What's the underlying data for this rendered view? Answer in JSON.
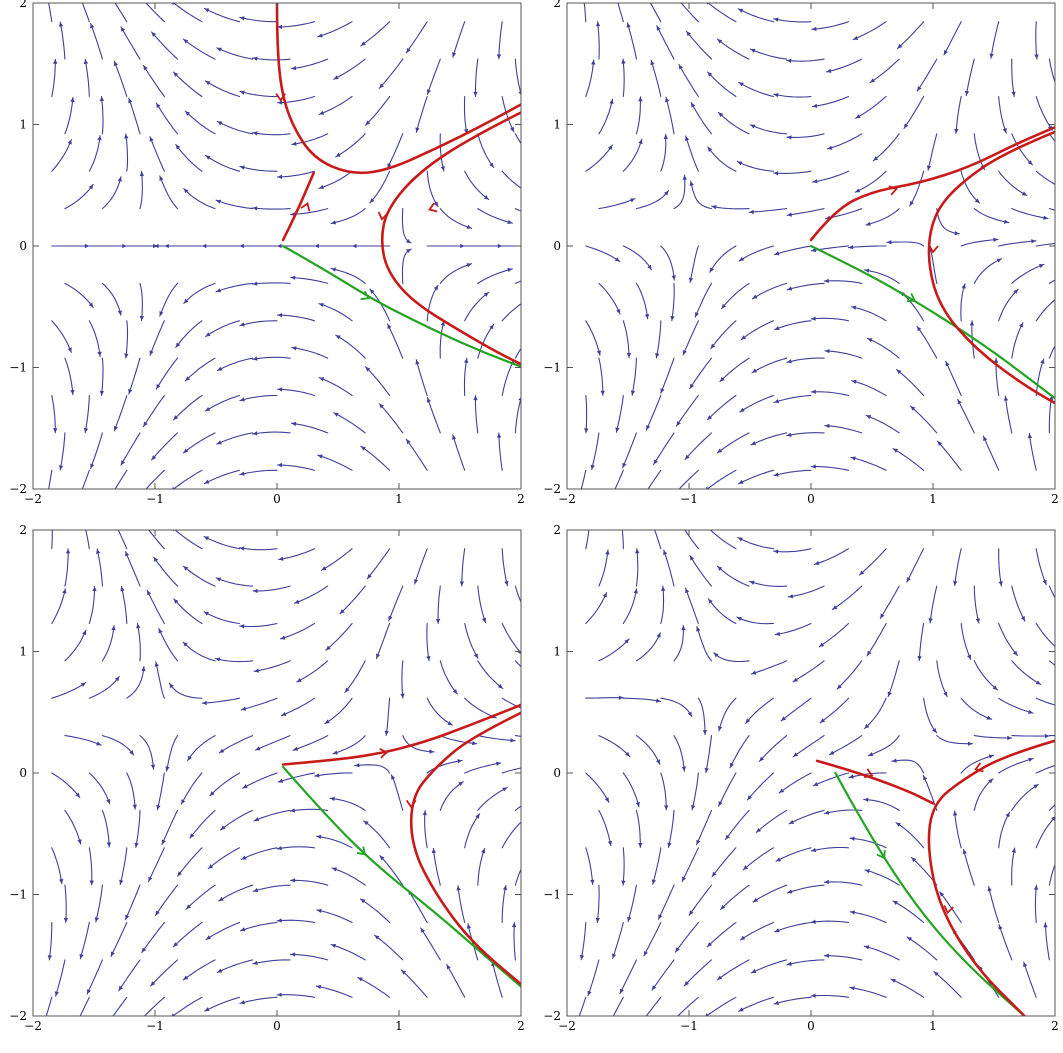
{
  "chart_data": [
    {
      "type": "streamplot",
      "panel": "top-left",
      "xlim": [
        -2,
        2
      ],
      "ylim": [
        -2,
        2
      ],
      "x_ticks": [
        -2,
        -1,
        0,
        1,
        2
      ],
      "y_ticks": [
        -2,
        -1,
        0,
        1,
        2
      ],
      "x_tick_labels": [
        "−2",
        "−1",
        "0",
        "1",
        "2"
      ],
      "y_tick_labels": [
        "−2",
        "−1",
        "0",
        "1",
        "2"
      ],
      "field_param": 0.0,
      "red_paths": [
        [
          [
            0.0,
            2.0
          ],
          [
            0.0,
            1.7
          ],
          [
            0.03,
            1.3
          ],
          [
            0.12,
            1.0
          ],
          [
            0.3,
            0.72
          ],
          [
            0.6,
            0.59
          ],
          [
            0.9,
            0.62
          ],
          [
            1.3,
            0.8
          ],
          [
            1.7,
            1.0
          ],
          [
            2.1,
            1.22
          ]
        ],
        [
          [
            0.05,
            0.05
          ],
          [
            0.15,
            0.25
          ],
          [
            0.3,
            0.6
          ]
        ],
        [
          [
            2.1,
            1.15
          ],
          [
            1.6,
            0.9
          ],
          [
            1.15,
            0.6
          ],
          [
            0.9,
            0.3
          ],
          [
            0.85,
            0.05
          ],
          [
            0.9,
            -0.2
          ],
          [
            1.1,
            -0.45
          ],
          [
            1.5,
            -0.7
          ],
          [
            1.85,
            -0.9
          ],
          [
            2.1,
            -1.02
          ]
        ]
      ],
      "green_paths": [
        [
          [
            0.05,
            0.0
          ],
          [
            0.4,
            -0.2
          ],
          [
            0.8,
            -0.45
          ],
          [
            1.3,
            -0.7
          ],
          [
            1.7,
            -0.88
          ],
          [
            2.1,
            -1.03
          ]
        ]
      ],
      "red_arrows": [
        [
          0.03,
          1.2,
          -90
        ],
        [
          0.25,
          0.35,
          70
        ],
        [
          1.25,
          0.3,
          200
        ],
        [
          0.86,
          0.22,
          -100
        ]
      ],
      "green_arrows": [
        [
          0.75,
          -0.43,
          -28
        ]
      ]
    },
    {
      "type": "streamplot",
      "panel": "top-right",
      "xlim": [
        -2,
        2
      ],
      "ylim": [
        -2,
        2
      ],
      "x_ticks": [
        -2,
        -1,
        0,
        1,
        2
      ],
      "y_ticks": [
        -2,
        -1,
        0,
        1,
        2
      ],
      "x_tick_labels": [
        "−2",
        "−1",
        "0",
        "1",
        "2"
      ],
      "y_tick_labels": [
        "−2",
        "−1",
        "0",
        "1",
        "2"
      ],
      "field_param": 0.6,
      "red_paths": [
        [
          [
            0.0,
            0.05
          ],
          [
            0.2,
            0.3
          ],
          [
            0.5,
            0.45
          ],
          [
            0.9,
            0.52
          ],
          [
            1.3,
            0.65
          ],
          [
            1.7,
            0.85
          ],
          [
            2.1,
            1.02
          ]
        ],
        [
          [
            2.1,
            0.98
          ],
          [
            1.6,
            0.78
          ],
          [
            1.2,
            0.5
          ],
          [
            1.0,
            0.25
          ],
          [
            0.95,
            -0.1
          ],
          [
            1.05,
            -0.5
          ],
          [
            1.35,
            -0.85
          ],
          [
            1.75,
            -1.15
          ],
          [
            2.1,
            -1.35
          ]
        ]
      ],
      "green_paths": [
        [
          [
            0.0,
            0.0
          ],
          [
            0.45,
            -0.22
          ],
          [
            0.9,
            -0.48
          ],
          [
            1.4,
            -0.8
          ],
          [
            1.8,
            -1.1
          ],
          [
            2.1,
            -1.33
          ]
        ]
      ],
      "red_arrows": [
        [
          0.7,
          0.47,
          15
        ],
        [
          1.0,
          -0.05,
          -95
        ]
      ],
      "green_arrows": [
        [
          0.85,
          -0.45,
          -30
        ]
      ]
    },
    {
      "type": "streamplot",
      "panel": "bottom-left",
      "xlim": [
        -2,
        2
      ],
      "ylim": [
        -2,
        2
      ],
      "x_ticks": [
        -2,
        -1,
        0,
        1,
        2
      ],
      "y_ticks": [
        -2,
        -1,
        0,
        1,
        2
      ],
      "x_tick_labels": [
        "−2",
        "−1",
        "0",
        "1",
        "2"
      ],
      "y_tick_labels": [
        "−2",
        "−1",
        "0",
        "1",
        "2"
      ],
      "field_param": 1.2,
      "red_paths": [
        [
          [
            0.05,
            0.07
          ],
          [
            0.4,
            0.1
          ],
          [
            0.8,
            0.15
          ],
          [
            1.2,
            0.25
          ],
          [
            1.6,
            0.4
          ],
          [
            2.05,
            0.58
          ]
        ],
        [
          [
            2.05,
            0.52
          ],
          [
            1.6,
            0.3
          ],
          [
            1.3,
            0.05
          ],
          [
            1.1,
            -0.2
          ],
          [
            1.1,
            -0.6
          ],
          [
            1.3,
            -1.0
          ],
          [
            1.6,
            -1.4
          ],
          [
            2.05,
            -1.78
          ]
        ]
      ],
      "green_paths": [
        [
          [
            0.05,
            0.05
          ],
          [
            0.4,
            -0.35
          ],
          [
            0.8,
            -0.75
          ],
          [
            1.3,
            -1.15
          ],
          [
            1.7,
            -1.5
          ],
          [
            2.05,
            -1.8
          ]
        ]
      ],
      "red_arrows": [
        [
          0.9,
          0.17,
          8
        ],
        [
          1.1,
          -0.28,
          -90
        ]
      ],
      "green_arrows": [
        [
          0.72,
          -0.67,
          -45
        ]
      ]
    },
    {
      "type": "streamplot",
      "panel": "bottom-right",
      "xlim": [
        -2,
        2
      ],
      "ylim": [
        -2,
        2
      ],
      "x_ticks": [
        -2,
        -1,
        0,
        1,
        2
      ],
      "y_ticks": [
        -2,
        -1,
        0,
        1,
        2
      ],
      "x_tick_labels": [
        "−2",
        "−1",
        "0",
        "1",
        "2"
      ],
      "y_tick_labels": [
        "−2",
        "−1",
        "0",
        "1",
        "2"
      ],
      "field_param": 1.8,
      "red_paths": [
        [
          [
            0.05,
            0.1
          ],
          [
            0.4,
            0.0
          ],
          [
            0.8,
            -0.15
          ],
          [
            1.0,
            -0.25
          ]
        ],
        [
          [
            2.05,
            0.28
          ],
          [
            1.6,
            0.15
          ],
          [
            1.25,
            -0.05
          ],
          [
            1.0,
            -0.25
          ],
          [
            0.95,
            -0.6
          ],
          [
            1.05,
            -1.1
          ],
          [
            1.35,
            -1.6
          ],
          [
            1.75,
            -2.0
          ]
        ]
      ],
      "green_paths": [
        [
          [
            0.2,
            0.0
          ],
          [
            0.5,
            -0.55
          ],
          [
            0.9,
            -1.15
          ],
          [
            1.3,
            -1.6
          ],
          [
            1.75,
            -2.0
          ]
        ]
      ],
      "red_arrows": [
        [
          0.5,
          -0.02,
          -20
        ],
        [
          1.35,
          0.03,
          200
        ],
        [
          1.12,
          -1.15,
          -100
        ]
      ],
      "green_arrows": [
        [
          0.6,
          -0.7,
          -60
        ]
      ]
    }
  ]
}
